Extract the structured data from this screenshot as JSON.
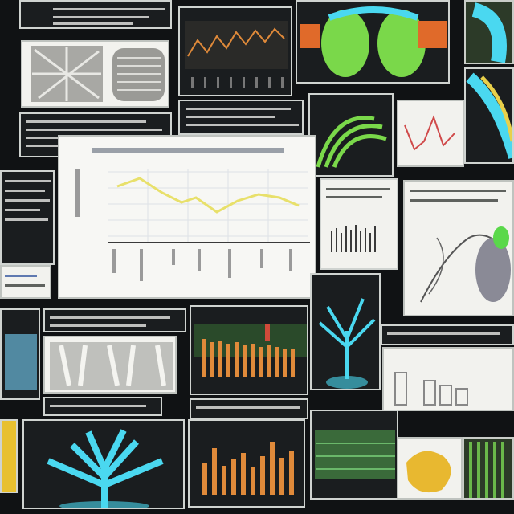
{
  "collage": {
    "description_visible_text": []
  },
  "palette": {
    "background": "#101214",
    "chart_line": "#e8e06a",
    "bar_orange": "#e08a3a",
    "accent_cyan": "#4ad8f0",
    "accent_green": "#6ad84a"
  }
}
